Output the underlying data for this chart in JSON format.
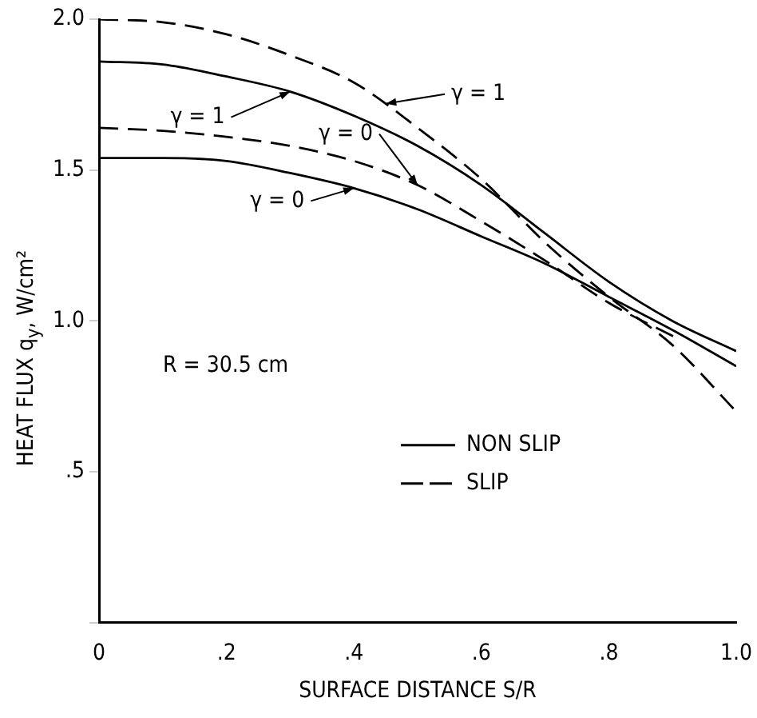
{
  "chart_data": {
    "type": "line",
    "xlabel": "SURFACE DISTANCE S/R",
    "ylabel": "HEAT FLUX q$_{y}$, W/cm²",
    "x": [
      0,
      0.1,
      0.2,
      0.3,
      0.4,
      0.5,
      0.6,
      0.7,
      0.8,
      0.9,
      1.0
    ],
    "series": [
      {
        "name": "NON SLIP",
        "color": "#000000",
        "line_style": "solid",
        "values": [
          1.86,
          1.85,
          1.81,
          1.76,
          1.68,
          1.58,
          1.45,
          1.29,
          1.13,
          1.0,
          0.9
        ]
      },
      {
        "color": "#000000",
        "line_style": "solid",
        "values": [
          1.54,
          1.54,
          1.53,
          1.49,
          1.44,
          1.37,
          1.28,
          1.19,
          1.08,
          0.97,
          0.85
        ]
      },
      {
        "name": "SLIP",
        "color": "#000000",
        "line_style": "dashed",
        "values": [
          2.0,
          1.99,
          1.95,
          1.88,
          1.79,
          1.64,
          1.47,
          1.26,
          1.08,
          0.92,
          0.7
        ]
      },
      {
        "color": "#000000",
        "line_style": "dashed",
        "x": [
          0,
          0.1,
          0.2,
          0.3,
          0.4,
          0.5,
          0.6,
          0.7,
          0.8,
          0.91
        ],
        "values": [
          1.64,
          1.63,
          1.61,
          1.58,
          1.53,
          1.45,
          1.33,
          1.2,
          1.06,
          0.94
        ]
      }
    ],
    "xlim": [
      0,
      1.0
    ],
    "xticks": [
      {
        "value": 0,
        "label": "0"
      },
      {
        "value": 0.2,
        "label": ".2"
      },
      {
        "value": 0.4,
        "label": ".4"
      },
      {
        "value": 0.6,
        "label": ".6"
      },
      {
        "value": 0.8,
        "label": ".8"
      },
      {
        "value": 1.0,
        "label": "1.0"
      }
    ],
    "ylim": [
      0,
      2.0
    ],
    "yticks": [
      {
        "value": 0,
        "label": null
      },
      {
        "value": 0.5,
        "label": ".5"
      },
      {
        "value": 1.0,
        "label": "1.0"
      },
      {
        "value": 1.5,
        "label": "1.5"
      },
      {
        "value": 2.0,
        "label": "2.0"
      }
    ],
    "grid": false,
    "legend": "bottom right",
    "marker": "none",
    "annotations": [
      {
        "text": "γ = 1",
        "x": 0.3,
        "y": 1.76
      },
      {
        "text": "γ = 1",
        "x": 0.45,
        "y": 1.72
      },
      {
        "text": "γ = 0",
        "x": 0.5,
        "y": 1.45
      },
      {
        "text": "γ = 0",
        "x": 0.4,
        "y": 1.44
      },
      "R = 30.5 cm"
    ]
  }
}
